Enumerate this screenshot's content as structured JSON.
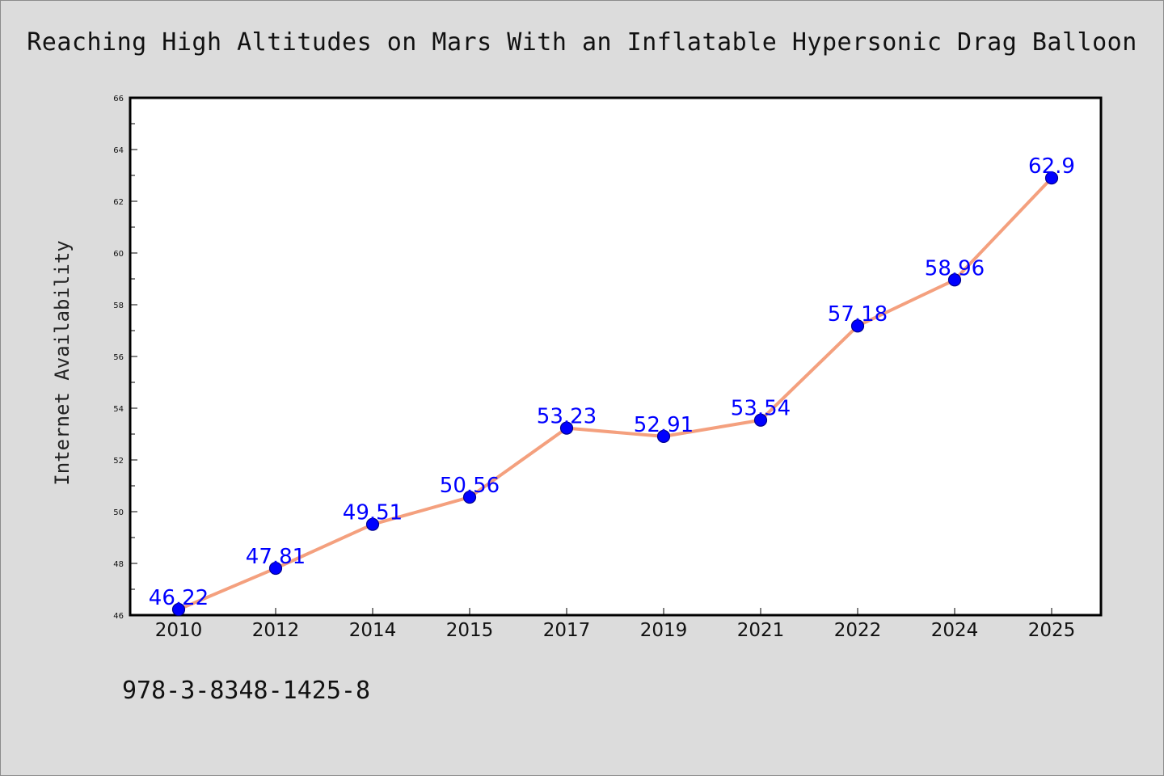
{
  "chart_data": {
    "type": "line",
    "title": "Reaching High Altitudes on Mars With an Inflatable Hypersonic Drag Balloon",
    "xlabel": "",
    "ylabel": "Internet Availability",
    "categories": [
      "2010",
      "2012",
      "2014",
      "2015",
      "2017",
      "2019",
      "2021",
      "2022",
      "2024",
      "2025"
    ],
    "series": [
      {
        "values": [
          46.22,
          47.81,
          49.51,
          50.56,
          53.23,
          52.91,
          53.54,
          57.18,
          58.96,
          62.9
        ],
        "labels": [
          "46.22",
          "47.81",
          "49.51",
          "50.56",
          "53.23",
          "52.91",
          "53.54",
          "57.18",
          "58.96",
          "62.9"
        ]
      }
    ],
    "ylim": [
      46,
      66
    ],
    "yticks": [
      "46",
      "48",
      "50",
      "52",
      "54",
      "56",
      "58",
      "60",
      "62",
      "64",
      "66"
    ],
    "grid": false,
    "legend": "none",
    "colors": {
      "line": "#f4a07e",
      "marker": "#0000ff",
      "marker_edge": "#00008b",
      "data_label": "#0000ff",
      "plot_background": "#ffffff",
      "page_background": "#dcdcdc"
    }
  },
  "footer": {
    "isbn": "978-3-8348-1425-8"
  }
}
